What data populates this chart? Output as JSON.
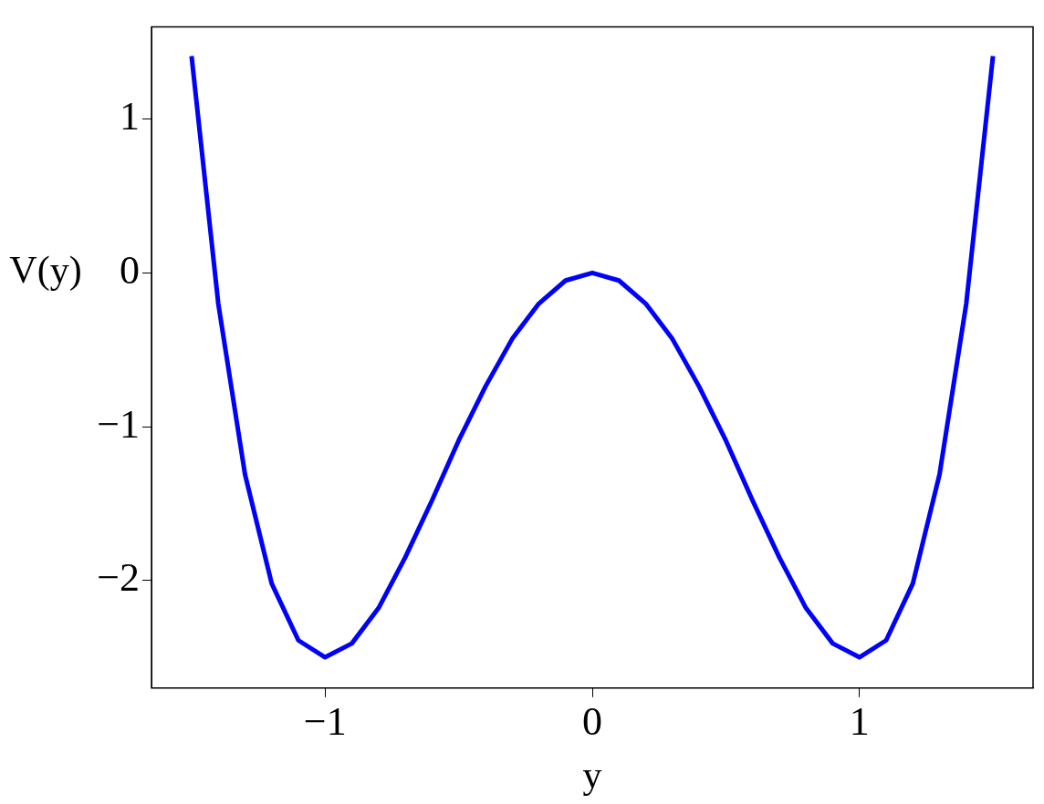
{
  "chart_data": {
    "type": "line",
    "xlabel": "y",
    "ylabel": "V(y)",
    "x": [
      -1.5,
      -1.4,
      -1.3,
      -1.2,
      -1.1,
      -1.0,
      -0.9,
      -0.8,
      -0.7,
      -0.6,
      -0.5,
      -0.4,
      -0.3,
      -0.2,
      -0.1,
      0,
      0.1,
      0.2,
      0.3,
      0.4,
      0.5,
      0.6,
      0.7,
      0.8,
      0.9,
      1.0,
      1.1,
      1.2,
      1.3,
      1.4,
      1.5
    ],
    "series": [
      {
        "color": "#0000ff",
        "values": [
          1.41,
          -0.2,
          -1.31,
          -2.02,
          -2.39,
          -2.5,
          -2.41,
          -2.18,
          -1.85,
          -1.48,
          -1.09,
          -0.74,
          -0.43,
          -0.2,
          -0.05,
          0,
          -0.05,
          -0.2,
          -0.43,
          -0.74,
          -1.09,
          -1.48,
          -1.85,
          -2.18,
          -2.41,
          -2.5,
          -2.39,
          -2.02,
          -1.31,
          -0.2,
          1.41
        ]
      }
    ],
    "xlim": [
      -1.65,
      1.65
    ],
    "ylim": [
      -2.7,
      1.6
    ],
    "xticks": [
      {
        "value": -1,
        "label": "−1"
      },
      0,
      1
    ],
    "yticks": [
      {
        "value": -2,
        "label": "−2"
      },
      {
        "value": -1,
        "label": "−1"
      },
      0,
      1
    ],
    "grid": false,
    "legend": false,
    "marker": "none",
    "line_style": "solid"
  }
}
